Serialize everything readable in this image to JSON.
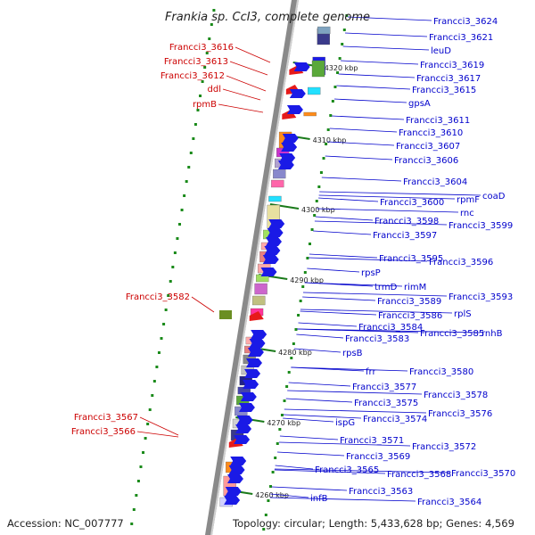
{
  "title": "Frankia sp. CcI3, complete genome",
  "footer": {
    "accession": "Accession: NC_007777",
    "topology": "Topology: circular; Length: 5,433,628 bp; Genes: 4,569"
  },
  "colors": {
    "left_label": "#cc0000",
    "right_label": "#0000cc"
  },
  "kbp_marks": [
    "4320 kbp",
    "4310 kbp",
    "4300 kbp",
    "4290 kbp",
    "4280 kbp",
    "4270 kbp",
    "4260 kbp"
  ],
  "left_labels": [
    "Francci3_3616",
    "Francci3_3613",
    "Francci3_3612",
    "ddl",
    "rpmB",
    "Francci3_3582",
    "Francci3_3567",
    "Francci3_3566"
  ],
  "right_labels": [
    "Francci3_3624",
    "Francci3_3621",
    "leuD",
    "Francci3_3619",
    "Francci3_3617",
    "Francci3_3615",
    "gpsA",
    "Francci3_3611",
    "Francci3_3610",
    "Francci3_3607",
    "Francci3_3606",
    "Francci3_3604",
    "coaD",
    "Francci3_3600",
    "rpmF",
    "rnc",
    "Francci3_3598",
    "Francci3_3599",
    "Francci3_3597",
    "Francci3_3595",
    "Francci3_3596",
    "rpsP",
    "trmD",
    "rimM",
    "Francci3_3593",
    "Francci3_3589",
    "rplS",
    "Francci3_3586",
    "Francci3_3584",
    "Francci3_3585",
    "rnhB",
    "Francci3_3583",
    "rpsB",
    "frr",
    "Francci3_3580",
    "Francci3_3577",
    "Francci3_3578",
    "Francci3_3575",
    "Francci3_3576",
    "ispG",
    "Francci3_3574",
    "Francci3_3571",
    "Francci3_3572",
    "Francci3_3569",
    "Francci3_3565",
    "Francci3_3568",
    "Francci3_3570",
    "Francci3_3563",
    "infB",
    "Francci3_3564"
  ]
}
